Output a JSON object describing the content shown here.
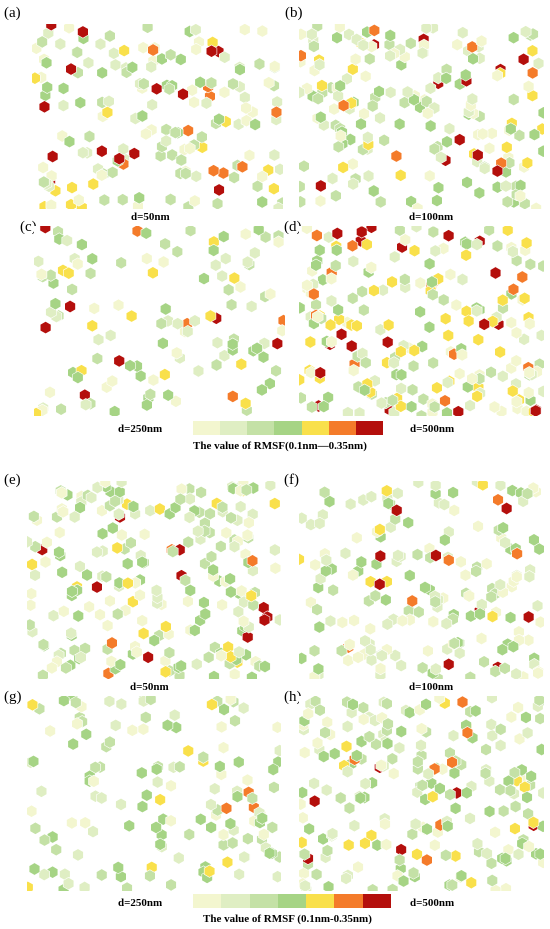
{
  "figure_a": {
    "panels": [
      {
        "letter": "(a)",
        "label": "d=50nm",
        "density": 170,
        "hot": 0.16
      },
      {
        "letter": "(b)",
        "label": "d=100nm",
        "density": 190,
        "hot": 0.1
      },
      {
        "letter": "(c)",
        "label": "",
        "density": 120,
        "hot": 0.16
      },
      {
        "letter": "(d)",
        "label": "",
        "density": 220,
        "hot": 0.22
      }
    ],
    "legend_left_label": "d=250nm",
    "legend_right_label": "d=500nm",
    "legend_title": "The value of RMSF(0.1nm—0.35nm)"
  },
  "figure_b": {
    "panels": [
      {
        "letter": "(e)",
        "label": "d=50nm",
        "density": 230,
        "hot": 0.09
      },
      {
        "letter": "(f)",
        "label": "d=100nm",
        "density": 190,
        "hot": 0.07
      },
      {
        "letter": "(g)",
        "label": "",
        "density": 140,
        "hot": 0.06
      },
      {
        "letter": "(h)",
        "label": "",
        "density": 220,
        "hot": 0.08
      }
    ],
    "legend_left_label": "d=250nm",
    "legend_right_label": "d=500nm",
    "legend_title": "The value of RMSF (0.1nm-0.35nm)"
  },
  "colors": {
    "scale": [
      "#f3f6cf",
      "#dfeec3",
      "#c4e1a6",
      "#a6d485",
      "#f9e04b",
      "#f47b2a",
      "#b40f0c"
    ],
    "outline": "#ffffff"
  }
}
